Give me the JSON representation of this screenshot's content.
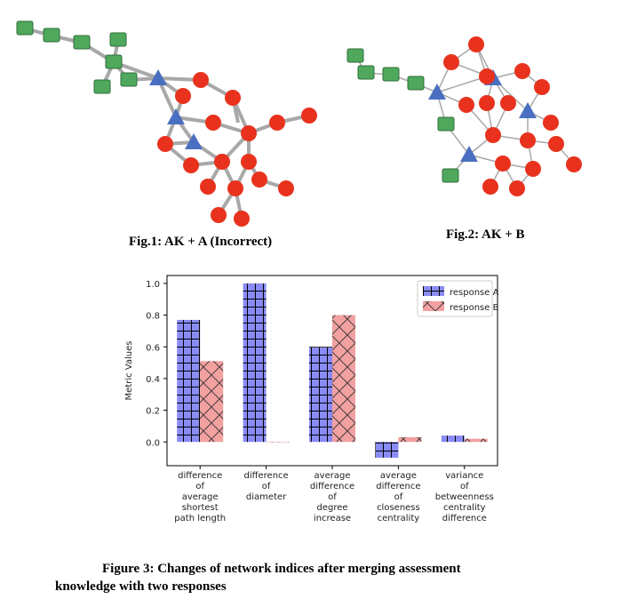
{
  "figure1": {
    "caption": "Fig.1: AK + A (Incorrect)",
    "edge_color": "#a8a8a8",
    "node_colors": {
      "circle": "#e8321e",
      "triangle": "#4a6fc0",
      "square": "#4fa85c"
    }
  },
  "figure2": {
    "caption": "Fig.2: AK + B"
  },
  "figure3": {
    "caption_line1": "Figure 3: Changes of network indices after merging assessment",
    "caption_line2": "knowledge with two responses"
  },
  "chart_data": {
    "type": "bar",
    "ylabel": "Metric Values",
    "ylim": [
      -0.15,
      1.05
    ],
    "yticks": [
      "1.0",
      "0.8",
      "0.6",
      "0.4",
      "0.2",
      "0.0"
    ],
    "ytick_values": [
      1.0,
      0.8,
      0.6,
      0.4,
      0.2,
      0.0
    ],
    "categories": [
      [
        "difference",
        "of",
        "average",
        "shortest",
        "path length"
      ],
      [
        "difference",
        "of",
        "diameter"
      ],
      [
        "average",
        "difference",
        "of",
        "degree",
        "increase"
      ],
      [
        "average",
        "difference",
        "of",
        "closeness",
        "centrality"
      ],
      [
        "variance",
        "of",
        "betweenness",
        "centrality",
        "difference"
      ]
    ],
    "series": [
      {
        "name": "response A",
        "values": [
          0.77,
          1.0,
          0.6,
          -0.1,
          0.04
        ],
        "color": "#8a8cf5",
        "hatch": "grid"
      },
      {
        "name": "response B",
        "values": [
          0.51,
          0.0,
          0.8,
          0.03,
          0.02
        ],
        "color": "#f2a0a0",
        "hatch": "cross"
      }
    ],
    "legend": "top-right"
  }
}
